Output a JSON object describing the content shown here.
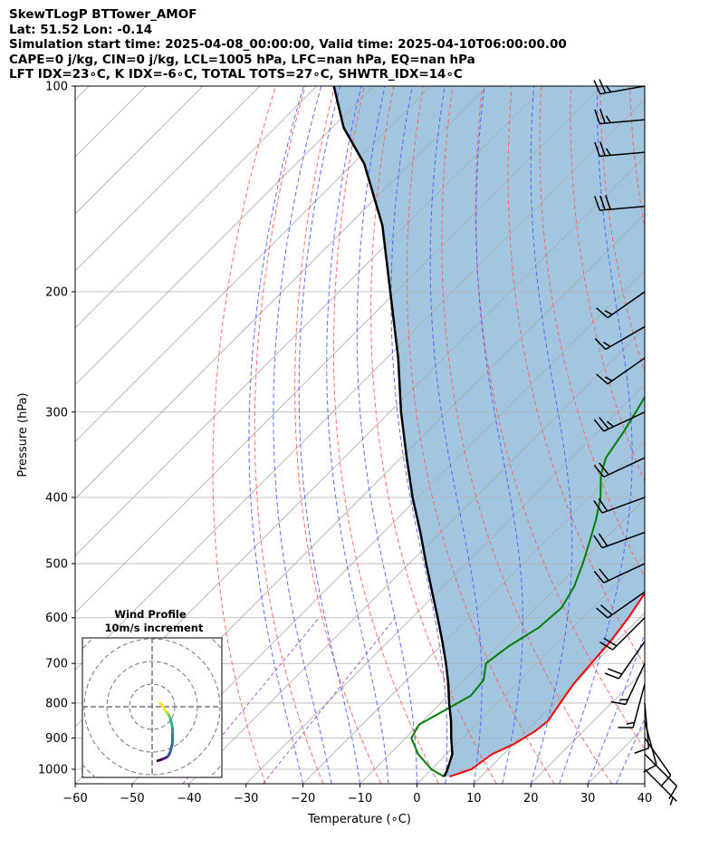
{
  "header": {
    "line1": "SkewTLogP BTTower_AMOF",
    "line2": "Lat: 51.52   Lon: -0.14",
    "line3": "Simulation start time: 2025-04-08_00:00:00, Valid time: 2025-04-10T06:00:00.00",
    "line4": "CAPE=0 j/kg, CIN=0 j/kg, LCL=1005 hPa, LFC=nan hPa, EQ=nan hPa",
    "line5": "LFT IDX=23∘C, K IDX=-6∘C, TOTAL TOTS=27∘C, SHWTR_IDX=14∘C"
  },
  "colors": {
    "temperature": "#ff0000",
    "dewpoint": "#008000",
    "parcel": "#000000",
    "cape_fill": "#a2c6df",
    "dry_adiabat": "#ff5555",
    "moist_adiabat": "#4455ff",
    "isotherm": "#aaaaaa",
    "mixing_ratio": "#9933cc"
  },
  "chart_data": [
    {
      "type": "line",
      "subtype": "skew-t log-p",
      "xlabel": "Temperature (∘C)",
      "ylabel": "Pressure (hPa)",
      "xlim": [
        -60,
        40
      ],
      "ylim": [
        1050,
        100
      ],
      "yscale": "log",
      "xticks": [
        -60,
        -50,
        -40,
        -30,
        -20,
        -10,
        0,
        10,
        20,
        30,
        40
      ],
      "yticks": [
        100,
        200,
        300,
        400,
        500,
        600,
        700,
        800,
        900,
        1000
      ],
      "grid": true,
      "series": [
        {
          "role": "temperature",
          "color": "#ff0000",
          "points": [
            [
              4.5,
              1025
            ],
            [
              7,
              1000
            ],
            [
              8,
              950
            ],
            [
              10,
              920
            ],
            [
              11.5,
              880
            ],
            [
              12,
              850
            ],
            [
              11,
              800
            ],
            [
              10,
              750
            ],
            [
              9.5,
              700
            ],
            [
              9,
              650
            ],
            [
              8,
              600
            ],
            [
              6.5,
              550
            ],
            [
              4.5,
              500
            ],
            [
              2,
              450
            ],
            [
              -1,
              400
            ],
            [
              -4,
              360
            ],
            [
              -7,
              330
            ],
            [
              -10,
              300
            ],
            [
              -13,
              270
            ],
            [
              -15,
              250
            ],
            [
              -17.5,
              230
            ],
            [
              -19.5,
              210
            ],
            [
              -20,
              195
            ],
            [
              -20.5,
              185
            ],
            [
              -20.5,
              170
            ],
            [
              -24,
              155
            ],
            [
              -29,
              140
            ],
            [
              -34,
              130
            ],
            [
              -39,
              120
            ],
            [
              -43,
              112
            ],
            [
              -46,
              105
            ],
            [
              -49,
              100
            ]
          ]
        },
        {
          "role": "dewpoint",
          "color": "#008000",
          "points": [
            [
              3.5,
              1025
            ],
            [
              0,
              1000
            ],
            [
              -5,
              950
            ],
            [
              -9,
              900
            ],
            [
              -10,
              860
            ],
            [
              -8,
              820
            ],
            [
              -6,
              780
            ],
            [
              -6.5,
              740
            ],
            [
              -9,
              700
            ],
            [
              -8,
              660
            ],
            [
              -6,
              620
            ],
            [
              -5.5,
              580
            ],
            [
              -7,
              540
            ],
            [
              -9.5,
              500
            ],
            [
              -12.5,
              460
            ],
            [
              -15,
              430
            ],
            [
              -18,
              400
            ],
            [
              -22,
              370
            ],
            [
              -24,
              350
            ],
            [
              -25.5,
              320
            ],
            [
              -27.5,
              290
            ],
            [
              -30,
              260
            ],
            [
              -33,
              240
            ],
            [
              -37.5,
              220
            ],
            [
              -41,
              205
            ],
            [
              -42,
              195
            ],
            [
              -38,
              180
            ],
            [
              -34,
              168
            ],
            [
              -33.5,
              157
            ],
            [
              -35,
              145
            ],
            [
              -37.5,
              137
            ],
            [
              -39,
              130
            ],
            [
              -40,
              125
            ],
            [
              -42,
              115
            ],
            [
              -44,
              107
            ],
            [
              -45.5,
              100
            ]
          ]
        },
        {
          "role": "parcel",
          "color": "#000000",
          "points": [
            [
              3.5,
              1025
            ],
            [
              3,
              1005
            ],
            [
              1,
              950
            ],
            [
              -2,
              900
            ],
            [
              -5,
              850
            ],
            [
              -8.5,
              800
            ],
            [
              -12,
              750
            ],
            [
              -16,
              700
            ],
            [
              -20.5,
              650
            ],
            [
              -25.5,
              600
            ],
            [
              -31,
              550
            ],
            [
              -37,
              500
            ],
            [
              -43.5,
              450
            ],
            [
              -51,
              400
            ],
            [
              -59,
              350
            ],
            [
              -68,
              300
            ],
            [
              -78,
              250
            ],
            [
              -91,
              200
            ],
            [
              -104,
              160
            ],
            [
              -118,
              130
            ],
            [
              -128,
              115
            ],
            [
              -137,
              100
            ]
          ]
        }
      ],
      "winds": [
        {
          "p": 1000,
          "speed_kt": 5,
          "dir": 135
        },
        {
          "p": 950,
          "speed_kt": 10,
          "dir": 135
        },
        {
          "p": 900,
          "speed_kt": 10,
          "dir": 145
        },
        {
          "p": 850,
          "speed_kt": 10,
          "dir": 165
        },
        {
          "p": 800,
          "speed_kt": 10,
          "dir": 175
        },
        {
          "p": 750,
          "speed_kt": 15,
          "dir": 195
        },
        {
          "p": 700,
          "speed_kt": 15,
          "dir": 205
        },
        {
          "p": 650,
          "speed_kt": 20,
          "dir": 215
        },
        {
          "p": 600,
          "speed_kt": 20,
          "dir": 225
        },
        {
          "p": 550,
          "speed_kt": 20,
          "dir": 235
        },
        {
          "p": 500,
          "speed_kt": 20,
          "dir": 245
        },
        {
          "p": 450,
          "speed_kt": 20,
          "dir": 250
        },
        {
          "p": 400,
          "speed_kt": 20,
          "dir": 250
        },
        {
          "p": 350,
          "speed_kt": 20,
          "dir": 245
        },
        {
          "p": 300,
          "speed_kt": 25,
          "dir": 245
        },
        {
          "p": 250,
          "speed_kt": 55,
          "dir": 235
        },
        {
          "p": 225,
          "speed_kt": 55,
          "dir": 240
        },
        {
          "p": 200,
          "speed_kt": 55,
          "dir": 235
        },
        {
          "p": 150,
          "speed_kt": 30,
          "dir": 265
        },
        {
          "p": 125,
          "speed_kt": 25,
          "dir": 265
        },
        {
          "p": 112,
          "speed_kt": 25,
          "dir": 265
        },
        {
          "p": 100,
          "speed_kt": 25,
          "dir": 260
        }
      ]
    },
    {
      "type": "hodograph",
      "title": "Wind Profile",
      "subtitle": "10m/s increment",
      "ring_spacing_ms": 10,
      "points_ms": [
        [
          -2,
          -3
        ],
        [
          0,
          -5
        ],
        [
          2,
          -6
        ],
        [
          3,
          -7
        ],
        [
          5,
          -8
        ],
        [
          9,
          -9
        ],
        [
          12,
          -9
        ],
        [
          16,
          -9
        ],
        [
          20,
          -8
        ],
        [
          22,
          -7
        ],
        [
          23,
          -5
        ],
        [
          24,
          -2
        ]
      ]
    }
  ]
}
